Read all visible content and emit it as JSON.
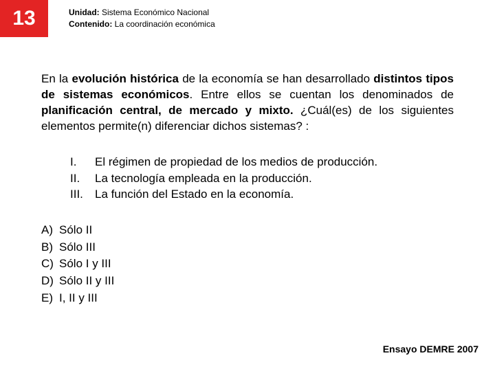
{
  "header": {
    "number": "13",
    "unidad_label": "Unidad:",
    "unidad_value": "Sistema Económico Nacional",
    "contenido_label": "Contenido:",
    "contenido_value": "La coordinación económica",
    "number_bg": "#e32424",
    "number_color": "#ffffff"
  },
  "question": {
    "seg1": "En la ",
    "bold1": "evolución histórica",
    "seg2": " de la economía se han desarrollado ",
    "bold2": "distintos tipos de sistemas económicos",
    "seg3": ". Entre ellos se cuentan los denominados de ",
    "bold3": "planificación central, de mercado y mixto.",
    "seg4": " ¿Cuál(es) de los siguientes elementos permite(n) diferenciar dichos sistemas? :"
  },
  "roman": [
    {
      "num": "I.",
      "text": "El régimen de propiedad de los medios de producción."
    },
    {
      "num": "II.",
      "text": "La tecnología empleada en la producción."
    },
    {
      "num": "III.",
      "text": "La función del Estado en la economía."
    }
  ],
  "options": [
    {
      "letter": "A)",
      "text": "Sólo II"
    },
    {
      "letter": "B)",
      "text": "Sólo III"
    },
    {
      "letter": "C)",
      "text": "Sólo I y III"
    },
    {
      "letter": "D)",
      "text": "Sólo II y III"
    },
    {
      "letter": "E)",
      "text": "I, II y III"
    }
  ],
  "footer": {
    "text": "Ensayo DEMRE 2007"
  }
}
